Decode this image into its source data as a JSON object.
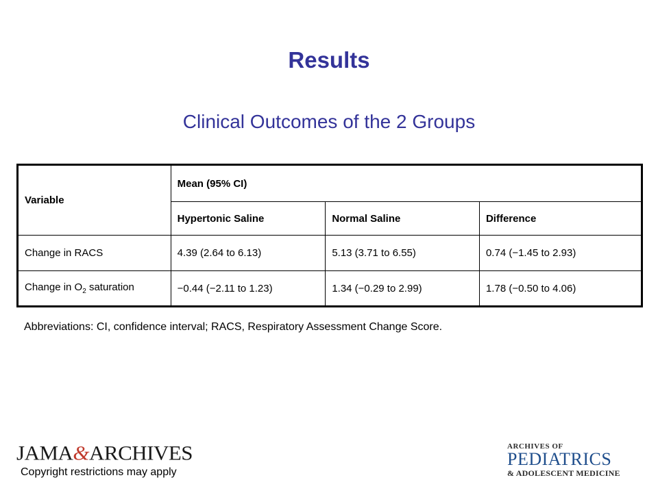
{
  "slide": {
    "title": "Results",
    "subtitle": "Clinical Outcomes of the 2 Groups"
  },
  "table": {
    "variable_header": "Variable",
    "group_header": "Mean (95% CI)",
    "columns": [
      "Hypertonic Saline",
      "Normal Saline",
      "Difference"
    ],
    "rows": [
      {
        "variable": "Change in RACS",
        "variable_sub": "",
        "variable_rest": "",
        "values": [
          "4.39 (2.64 to 6.13)",
          "5.13 (3.71 to 6.55)",
          "0.74 (−1.45 to 2.93)"
        ]
      },
      {
        "variable": "Change in O",
        "variable_sub": "2",
        "variable_rest": " saturation",
        "values": [
          "−0.44 (−2.11 to 1.23)",
          "1.34 (−0.29 to 2.99)",
          "1.78 (−0.50 to 4.06)"
        ]
      }
    ]
  },
  "footnote": "Abbreviations: CI, confidence interval; RACS, Respiratory Assessment Change Score.",
  "footer": {
    "publisher_logo": {
      "part1": "JAMA",
      "amp": "&",
      "part2": "ARCHIVES"
    },
    "copyright": "Copyright restrictions may apply",
    "journal_logo": {
      "top": "ARCHIVES OF",
      "middle": "PEDIATRICS",
      "bottom": "& ADOLESCENT MEDICINE"
    }
  },
  "colors": {
    "title": "#333399",
    "table_border": "#000000",
    "journal_accent": "#1f4e8c"
  }
}
